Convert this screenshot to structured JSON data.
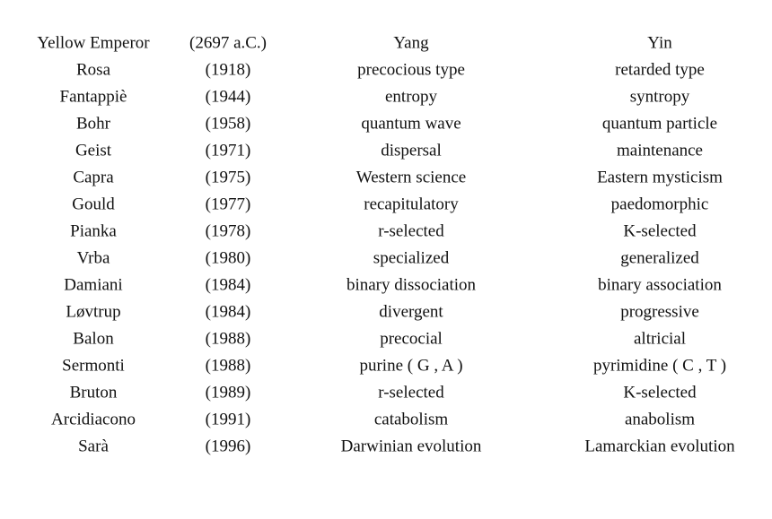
{
  "table": {
    "rows": [
      [
        "Yellow Emperor",
        "(2697 a.C.)",
        "Yang",
        "Yin"
      ],
      [
        "Rosa",
        "(1918)",
        "precocious type",
        "retarded type"
      ],
      [
        "Fantappiè",
        "(1944)",
        "entropy",
        "syntropy"
      ],
      [
        "Bohr",
        "(1958)",
        "quantum wave",
        "quantum particle"
      ],
      [
        "Geist",
        "(1971)",
        "dispersal",
        "maintenance"
      ],
      [
        "Capra",
        "(1975)",
        "Western science",
        "Eastern mysticism"
      ],
      [
        "Gould",
        "(1977)",
        "recapitulatory",
        "paedomorphic"
      ],
      [
        "Pianka",
        "(1978)",
        "r-selected",
        "K-selected"
      ],
      [
        "Vrba",
        "(1980)",
        "specialized",
        "generalized"
      ],
      [
        "Damiani",
        "(1984)",
        "binary dissociation",
        "binary association"
      ],
      [
        "Løvtrup",
        "(1984)",
        "divergent",
        "progressive"
      ],
      [
        "Balon",
        "(1988)",
        "precocial",
        "altricial"
      ],
      [
        "Sermonti",
        "(1988)",
        "purine ( G , A )",
        "pyrimidine ( C , T )"
      ],
      [
        "Bruton",
        "(1989)",
        "r-selected",
        "K-selected"
      ],
      [
        "Arcidiacono",
        "(1991)",
        "catabolism",
        "anabolism"
      ],
      [
        "Sarà",
        "(1996)",
        "Darwinian evolution",
        "Lamarckian evolution"
      ]
    ]
  }
}
